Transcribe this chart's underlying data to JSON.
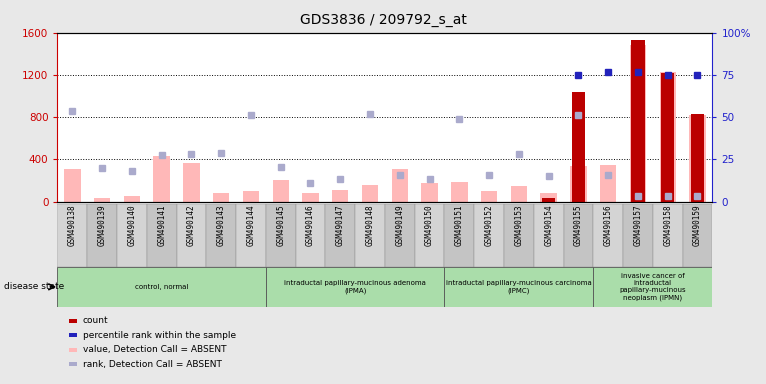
{
  "title": "GDS3836 / 209792_s_at",
  "samples": [
    "GSM490138",
    "GSM490139",
    "GSM490140",
    "GSM490141",
    "GSM490142",
    "GSM490143",
    "GSM490144",
    "GSM490145",
    "GSM490146",
    "GSM490147",
    "GSM490148",
    "GSM490149",
    "GSM490150",
    "GSM490151",
    "GSM490152",
    "GSM490153",
    "GSM490154",
    "GSM490155",
    "GSM490156",
    "GSM490157",
    "GSM490158",
    "GSM490159"
  ],
  "value_absent": [
    310,
    30,
    50,
    430,
    370,
    80,
    100,
    200,
    80,
    110,
    160,
    310,
    175,
    185,
    100,
    150,
    80,
    340,
    350,
    1480,
    1230,
    820
  ],
  "count": [
    0,
    0,
    0,
    0,
    0,
    0,
    0,
    0,
    0,
    0,
    0,
    0,
    0,
    0,
    0,
    0,
    30,
    1040,
    0,
    1530,
    1220,
    830
  ],
  "rank_absent": [
    860,
    320,
    290,
    440,
    450,
    460,
    820,
    330,
    180,
    210,
    830,
    250,
    210,
    780,
    250,
    450,
    240,
    820,
    250,
    50,
    50,
    50
  ],
  "percentile_rank_pct": [
    0,
    0,
    0,
    0,
    0,
    0,
    0,
    0,
    0,
    0,
    0,
    0,
    0,
    0,
    0,
    0,
    0,
    75,
    77,
    77,
    75,
    75
  ],
  "has_count": [
    false,
    false,
    false,
    false,
    false,
    false,
    false,
    false,
    false,
    false,
    false,
    false,
    false,
    false,
    false,
    false,
    true,
    true,
    false,
    true,
    true,
    true
  ],
  "has_percentile": [
    false,
    false,
    false,
    false,
    false,
    false,
    false,
    false,
    false,
    false,
    false,
    false,
    false,
    false,
    false,
    false,
    false,
    true,
    true,
    true,
    true,
    true
  ],
  "ylim_left": [
    0,
    1600
  ],
  "ylim_right": [
    0,
    100
  ],
  "yticks_left": [
    0,
    400,
    800,
    1200,
    1600
  ],
  "yticks_right": [
    0,
    25,
    50,
    75,
    100
  ],
  "group_ranges": [
    [
      0,
      6
    ],
    [
      7,
      12
    ],
    [
      13,
      17
    ],
    [
      18,
      21
    ]
  ],
  "group_labels": [
    "control, normal",
    "intraductal papillary-mucinous adenoma\n(IPMA)",
    "intraductal papillary-mucinous carcinoma\n(IPMC)",
    "invasive cancer of\nintraductal\npapillary-mucinous\nneoplasm (IPMN)"
  ],
  "bar_color_absent": "#ffb8b8",
  "bar_color_count": "#bb0000",
  "dot_color_rank_absent": "#aaaacc",
  "dot_color_percentile": "#2222bb",
  "axis_color_left": "#cc0000",
  "axis_color_right": "#2222cc",
  "bg_color": "#e8e8e8",
  "plot_bg": "#ffffff",
  "group_color": "#aaddaa",
  "col_color_even": "#d4d4d4",
  "col_color_odd": "#c4c4c4",
  "disease_state_label": "disease state",
  "legend_items": [
    {
      "label": "count",
      "color": "#bb0000"
    },
    {
      "label": "percentile rank within the sample",
      "color": "#2222bb"
    },
    {
      "label": "value, Detection Call = ABSENT",
      "color": "#ffb8b8"
    },
    {
      "label": "rank, Detection Call = ABSENT",
      "color": "#aaaacc"
    }
  ]
}
